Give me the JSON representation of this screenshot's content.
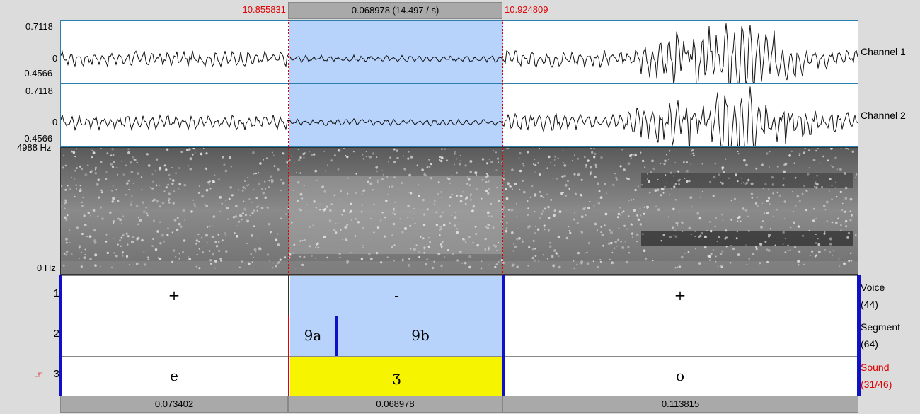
{
  "header": {
    "sel_start": "10.855831",
    "sel_duration": "0.068978 (14.497 / s)",
    "sel_end": "10.924809"
  },
  "channel1": {
    "max": "0.7118",
    "zero": "0",
    "min": "-0.4566",
    "name": "Channel 1"
  },
  "channel2": {
    "max": "0.7118",
    "zero": "0",
    "min": "-0.4566",
    "name": "Channel 2"
  },
  "spectrogram": {
    "top_freq": "4988 Hz",
    "bottom_freq": "0 Hz"
  },
  "tiers": [
    {
      "num": "1",
      "name": "Voice",
      "count": "(44)",
      "labels": [
        "+",
        "-",
        "+"
      ]
    },
    {
      "num": "2",
      "name": "Segment",
      "count": "(64)",
      "labels": [
        "9a",
        "9b"
      ]
    },
    {
      "num": "3",
      "pointer": "☞",
      "name": "Sound",
      "count": "(31/46)",
      "labels": [
        "e",
        "ʒ",
        "o"
      ]
    }
  ],
  "durations": [
    "0.073402",
    "0.068978",
    "0.113815"
  ],
  "colors": {
    "selection": "#b7d3fb",
    "active_interval": "#f7f400",
    "boundary": "#1010c8",
    "accent_red": "#e00000"
  }
}
